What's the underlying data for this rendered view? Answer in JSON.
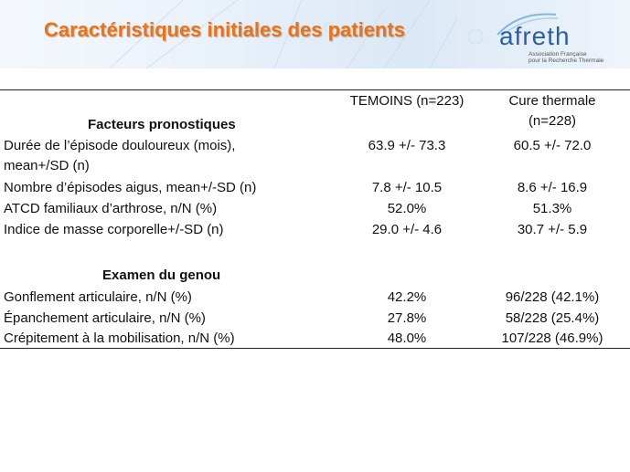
{
  "header": {
    "title": "Caractéristiques initiales des patients",
    "logo_word": "afreth",
    "logo_subtitle_1": "Association Française",
    "logo_subtitle_2": "pour la Recherche Thermale"
  },
  "table": {
    "col_temoins": "TEMOINS (n=223)",
    "col_cure_line1": "Cure thermale",
    "col_cure_line2": "(n=228)",
    "section1_title": "Facteurs pronostiques",
    "section2_title": "Examen du genou",
    "rows": [
      {
        "label": "Durée de l’épisode douloureux (mois),",
        "label2": "mean+/SD (n)",
        "temoins": "63.9 +/- 73.3",
        "cure": "60.5 +/- 72.0"
      },
      {
        "label": "Nombre d’épisodes aigus, mean+/-SD (n)",
        "temoins": "7.8 +/- 10.5",
        "cure": "8.6 +/- 16.9"
      },
      {
        "label": "ATCD familiaux  d’arthrose, n/N (%)",
        "temoins": "52.0%",
        "cure": "51.3%"
      },
      {
        "label": "Indice de masse corporelle+/-SD (n)",
        "temoins": "29.0 +/- 4.6",
        "cure": "30.7 +/- 5.9"
      },
      {
        "label": "Gonflement articulaire,  n/N (%)",
        "temoins": "42.2%",
        "cure": "96/228 (42.1%)"
      },
      {
        "label": "Épanchement articulaire,  n/N (%)",
        "temoins": "27.8%",
        "cure": "58/228 (25.4%)"
      },
      {
        "label": "Crépitement à la mobilisation, n/N (%)",
        "temoins": "48.0%",
        "cure": "107/228 (46.9%)"
      }
    ]
  },
  "colors": {
    "title": "#e8731c",
    "logo": "#2b5ea8",
    "text": "#111111"
  }
}
